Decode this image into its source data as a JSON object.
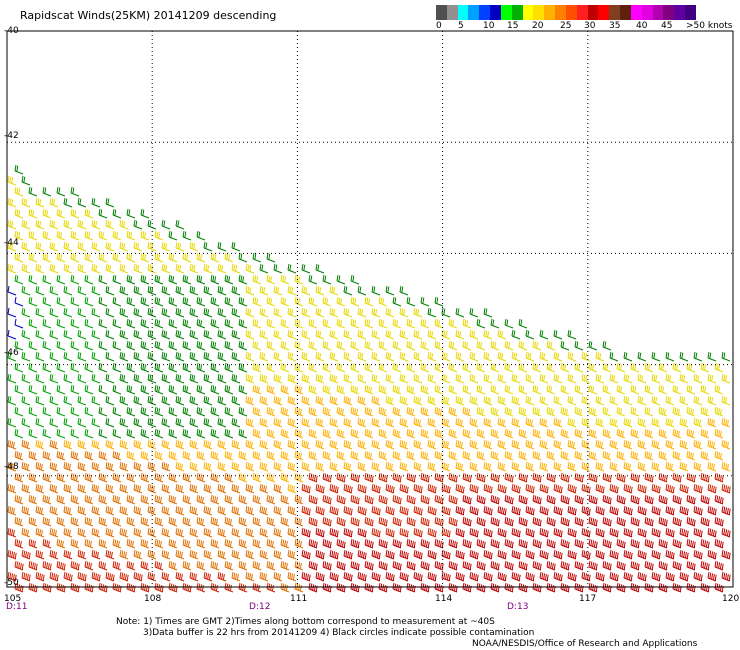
{
  "title": "Rapidscat Winds(25KM) 20141209 descending",
  "colorbar": {
    "colors": [
      "#505050",
      "#909090",
      "#00ffff",
      "#00a0ff",
      "#0040ff",
      "#0000c0",
      "#00ff00",
      "#00b000",
      "#ffff00",
      "#ffe000",
      "#ffb000",
      "#ff8000",
      "#ff5000",
      "#ff2020",
      "#c00000",
      "#ff0000",
      "#804020",
      "#602010",
      "#ff00ff",
      "#e000e0",
      "#b000b0",
      "#800080",
      "#6000a0",
      "#400080"
    ],
    "labels": [
      "0",
      "5",
      "10",
      "15",
      "20",
      "25",
      "30",
      "35",
      "40",
      "45",
      ">50 knots"
    ]
  },
  "map": {
    "lon_ticks": [
      "105",
      "108",
      "111",
      "114",
      "117",
      "120"
    ],
    "lat_ticks": [
      "-40",
      "-42",
      "-44",
      "-46",
      "-48",
      "-50"
    ],
    "time_labels": [
      {
        "text": "D:11",
        "lon": 105.1
      },
      {
        "text": "D:12",
        "lon": 110.2
      },
      {
        "text": "D:13",
        "lon": 115.2
      }
    ]
  },
  "notes": [
    "Note: 1) Times are GMT 2)Times along bottom correspond to measurement at ~40S",
    "3)Data buffer is 22 hrs from 20141209 4) Black circles indicate possible contamination",
    "NOAA/NESDIS/Office of Research and Applications"
  ]
}
